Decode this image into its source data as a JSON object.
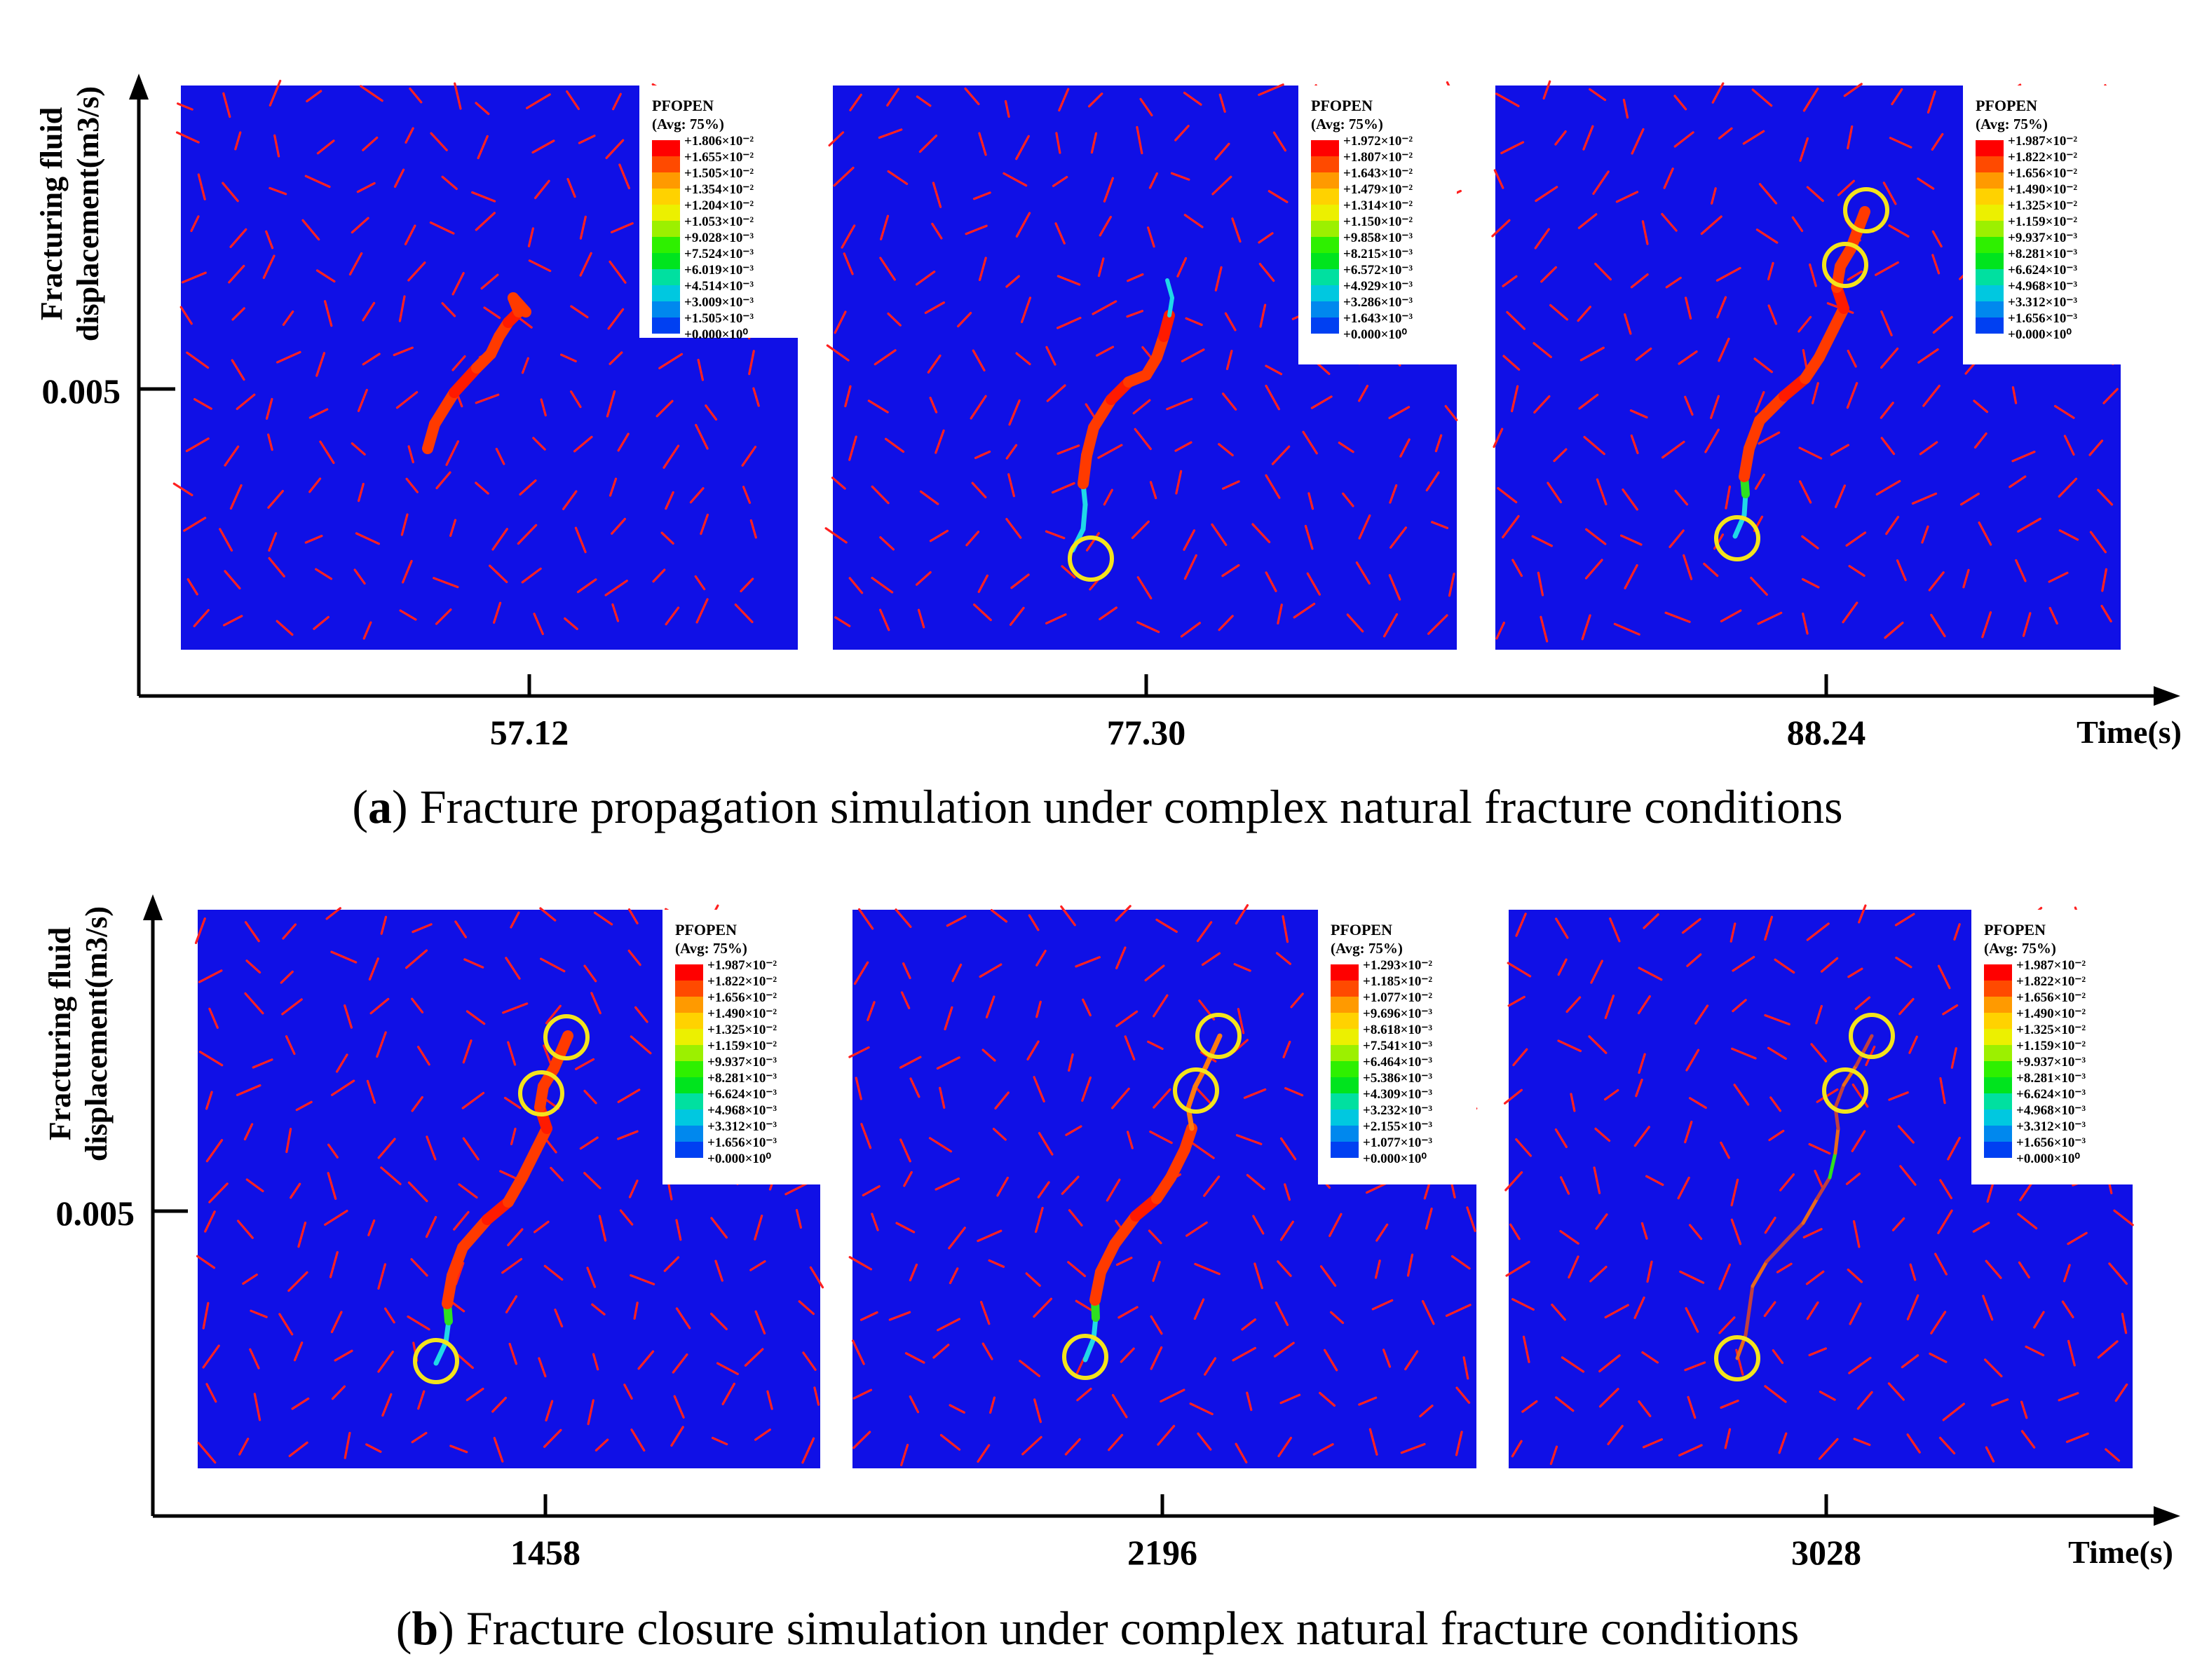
{
  "figure": {
    "panel_a": {
      "letter": "a",
      "caption": " Fracture propagation simulation under complex natural fracture conditions",
      "ylabel_line1": "Fracturing fluid",
      "ylabel_line2": "displacement(m3/s)",
      "ytick": "0.005",
      "xlabel": "Time(s)",
      "frames": [
        {
          "time": "57.12",
          "legend_title": "PFOPEN",
          "legend_avg": "(Avg: 75%)",
          "legend_values": [
            "+1.806×10⁻²",
            "+1.655×10⁻²",
            "+1.505×10⁻²",
            "+1.354×10⁻²",
            "+1.204×10⁻²",
            "+1.053×10⁻²",
            "+9.028×10⁻³",
            "+7.524×10⁻³",
            "+6.019×10⁻³",
            "+4.514×10⁻³",
            "+3.009×10⁻³",
            "+1.505×10⁻³",
            "+0.000×10⁰"
          ]
        },
        {
          "time": "77.30",
          "legend_title": "PFOPEN",
          "legend_avg": "(Avg: 75%)",
          "legend_values": [
            "+1.972×10⁻²",
            "+1.807×10⁻²",
            "+1.643×10⁻²",
            "+1.479×10⁻²",
            "+1.314×10⁻²",
            "+1.150×10⁻²",
            "+9.858×10⁻³",
            "+8.215×10⁻³",
            "+6.572×10⁻³",
            "+4.929×10⁻³",
            "+3.286×10⁻³",
            "+1.643×10⁻³",
            "+0.000×10⁰"
          ]
        },
        {
          "time": "88.24",
          "legend_title": "PFOPEN",
          "legend_avg": "(Avg: 75%)",
          "legend_values": [
            "+1.987×10⁻²",
            "+1.822×10⁻²",
            "+1.656×10⁻²",
            "+1.490×10⁻²",
            "+1.325×10⁻²",
            "+1.159×10⁻²",
            "+9.937×10⁻³",
            "+8.281×10⁻³",
            "+6.624×10⁻³",
            "+4.968×10⁻³",
            "+3.312×10⁻³",
            "+1.656×10⁻³",
            "+0.000×10⁰"
          ]
        }
      ]
    },
    "panel_b": {
      "letter": "b",
      "caption": " Fracture closure simulation under complex natural fracture conditions",
      "ylabel_line1": "Fracturing fluid",
      "ylabel_line2": "displacement(m3/s)",
      "ytick": "0.005",
      "xlabel": "Time(s)",
      "frames": [
        {
          "time": "1458",
          "legend_title": "PFOPEN",
          "legend_avg": "(Avg: 75%)",
          "legend_values": [
            "+1.987×10⁻²",
            "+1.822×10⁻²",
            "+1.656×10⁻²",
            "+1.490×10⁻²",
            "+1.325×10⁻²",
            "+1.159×10⁻²",
            "+9.937×10⁻³",
            "+8.281×10⁻³",
            "+6.624×10⁻³",
            "+4.968×10⁻³",
            "+3.312×10⁻³",
            "+1.656×10⁻³",
            "+0.000×10⁰"
          ]
        },
        {
          "time": "2196",
          "legend_title": "PFOPEN",
          "legend_avg": "(Avg: 75%)",
          "legend_values": [
            "+1.293×10⁻²",
            "+1.185×10⁻²",
            "+1.077×10⁻²",
            "+9.696×10⁻³",
            "+8.618×10⁻³",
            "+7.541×10⁻³",
            "+6.464×10⁻³",
            "+5.386×10⁻³",
            "+4.309×10⁻³",
            "+3.232×10⁻³",
            "+2.155×10⁻³",
            "+1.077×10⁻³",
            "+0.000×10⁰"
          ]
        },
        {
          "time": "3028",
          "legend_title": "PFOPEN",
          "legend_avg": "(Avg: 75%)",
          "legend_values": [
            "+1.987×10⁻²",
            "+1.822×10⁻²",
            "+1.656×10⁻²",
            "+1.490×10⁻²",
            "+1.325×10⁻²",
            "+1.159×10⁻²",
            "+9.937×10⁻³",
            "+8.281×10⁻³",
            "+6.624×10⁻³",
            "+4.968×10⁻³",
            "+3.312×10⁻³",
            "+1.656×10⁻³",
            "+0.000×10⁰"
          ]
        }
      ]
    },
    "colors": {
      "domain_background": "#1010e6",
      "natural_fracture": "#ff2020",
      "highlight_circle": "#f4e41c",
      "legend_scale": [
        "#ff0000",
        "#ff4a00",
        "#ff9a00",
        "#ffd200",
        "#ecf000",
        "#9cf000",
        "#2ef000",
        "#00e41e",
        "#00e0a0",
        "#00c8e0",
        "#0088ee",
        "#0040f2",
        "#0000ff"
      ]
    }
  }
}
